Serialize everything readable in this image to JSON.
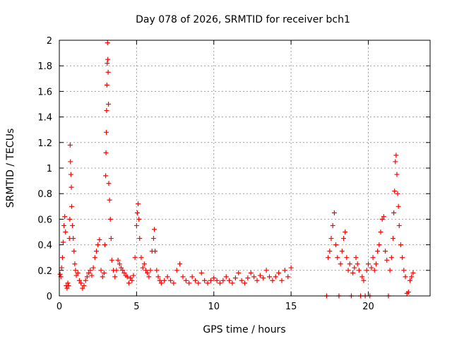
{
  "chart_data": {
    "type": "scatter",
    "title": "Day 078 of 2026, SRMTID for receiver bch1",
    "xlabel": "GPS time / hours",
    "ylabel": "SRMTID / TECUs",
    "xlim": [
      0,
      24
    ],
    "ylim": [
      0,
      2
    ],
    "xticks": [
      0,
      5,
      10,
      15,
      20
    ],
    "yticks": [
      0,
      0.2,
      0.4,
      0.6,
      0.8,
      1,
      1.2,
      1.4,
      1.6,
      1.8,
      2
    ],
    "xtick_labels": [
      "0",
      "5",
      "10",
      "15",
      "20"
    ],
    "ytick_labels": [
      "0",
      "0.2",
      "0.4",
      "0.6",
      "0.8",
      "1",
      "1.2",
      "1.4",
      "1.6",
      "1.8",
      "2"
    ],
    "grid": true,
    "marker": "plus",
    "color": "#ff0000",
    "series": [
      {
        "name": "bch1",
        "points": [
          [
            0.05,
            0.17
          ],
          [
            0.1,
            0.15
          ],
          [
            0.15,
            0.22
          ],
          [
            0.2,
            0.3
          ],
          [
            0.25,
            0.42
          ],
          [
            0.3,
            0.55
          ],
          [
            0.35,
            0.62
          ],
          [
            0.4,
            0.5
          ],
          [
            0.45,
            0.08
          ],
          [
            0.5,
            0.06
          ],
          [
            0.55,
            0.1
          ],
          [
            0.6,
            0.08
          ],
          [
            0.65,
            0.45
          ],
          [
            0.68,
            0.6
          ],
          [
            0.7,
            1.18
          ],
          [
            0.72,
            1.05
          ],
          [
            0.75,
            0.95
          ],
          [
            0.78,
            0.85
          ],
          [
            0.8,
            0.7
          ],
          [
            0.85,
            0.55
          ],
          [
            0.9,
            0.45
          ],
          [
            0.95,
            0.35
          ],
          [
            1.0,
            0.25
          ],
          [
            1.05,
            0.2
          ],
          [
            1.1,
            0.16
          ],
          [
            1.2,
            0.18
          ],
          [
            1.3,
            0.12
          ],
          [
            1.4,
            0.1
          ],
          [
            1.5,
            0.06
          ],
          [
            1.6,
            0.08
          ],
          [
            1.7,
            0.12
          ],
          [
            1.8,
            0.15
          ],
          [
            1.9,
            0.18
          ],
          [
            2.0,
            0.2
          ],
          [
            2.1,
            0.16
          ],
          [
            2.2,
            0.22
          ],
          [
            2.3,
            0.3
          ],
          [
            2.4,
            0.35
          ],
          [
            2.5,
            0.4
          ],
          [
            2.6,
            0.44
          ],
          [
            2.7,
            0.2
          ],
          [
            2.8,
            0.15
          ],
          [
            2.9,
            0.18
          ],
          [
            2.95,
            0.4
          ],
          [
            3.0,
            0.94
          ],
          [
            3.02,
            1.12
          ],
          [
            3.04,
            1.28
          ],
          [
            3.06,
            1.45
          ],
          [
            3.08,
            1.65
          ],
          [
            3.1,
            1.82
          ],
          [
            3.12,
            1.98
          ],
          [
            3.14,
            1.85
          ],
          [
            3.16,
            1.75
          ],
          [
            3.18,
            1.5
          ],
          [
            3.2,
            0.88
          ],
          [
            3.25,
            0.75
          ],
          [
            3.3,
            0.6
          ],
          [
            3.35,
            0.45
          ],
          [
            3.4,
            0.28
          ],
          [
            3.5,
            0.2
          ],
          [
            3.6,
            0.15
          ],
          [
            3.7,
            0.2
          ],
          [
            3.8,
            0.28
          ],
          [
            3.9,
            0.25
          ],
          [
            4.0,
            0.22
          ],
          [
            4.1,
            0.2
          ],
          [
            4.2,
            0.18
          ],
          [
            4.3,
            0.16
          ],
          [
            4.4,
            0.15
          ],
          [
            4.5,
            0.1
          ],
          [
            4.6,
            0.14
          ],
          [
            4.7,
            0.12
          ],
          [
            4.8,
            0.16
          ],
          [
            4.9,
            0.3
          ],
          [
            5.0,
            0.55
          ],
          [
            5.05,
            0.65
          ],
          [
            5.1,
            0.72
          ],
          [
            5.15,
            0.6
          ],
          [
            5.2,
            0.45
          ],
          [
            5.3,
            0.3
          ],
          [
            5.4,
            0.22
          ],
          [
            5.5,
            0.25
          ],
          [
            5.6,
            0.2
          ],
          [
            5.7,
            0.18
          ],
          [
            5.8,
            0.15
          ],
          [
            5.9,
            0.2
          ],
          [
            6.0,
            0.35
          ],
          [
            6.1,
            0.45
          ],
          [
            6.15,
            0.52
          ],
          [
            6.2,
            0.35
          ],
          [
            6.3,
            0.2
          ],
          [
            6.4,
            0.15
          ],
          [
            6.5,
            0.12
          ],
          [
            6.6,
            0.1
          ],
          [
            6.8,
            0.12
          ],
          [
            7.0,
            0.15
          ],
          [
            7.2,
            0.12
          ],
          [
            7.4,
            0.1
          ],
          [
            7.6,
            0.2
          ],
          [
            7.8,
            0.25
          ],
          [
            8.0,
            0.15
          ],
          [
            8.2,
            0.12
          ],
          [
            8.4,
            0.1
          ],
          [
            8.6,
            0.15
          ],
          [
            8.8,
            0.12
          ],
          [
            9.0,
            0.1
          ],
          [
            9.2,
            0.18
          ],
          [
            9.4,
            0.12
          ],
          [
            9.6,
            0.1
          ],
          [
            9.8,
            0.12
          ],
          [
            10.0,
            0.14
          ],
          [
            10.2,
            0.12
          ],
          [
            10.4,
            0.1
          ],
          [
            10.6,
            0.12
          ],
          [
            10.8,
            0.15
          ],
          [
            11.0,
            0.12
          ],
          [
            11.2,
            0.1
          ],
          [
            11.4,
            0.14
          ],
          [
            11.6,
            0.18
          ],
          [
            11.8,
            0.12
          ],
          [
            12.0,
            0.1
          ],
          [
            12.2,
            0.14
          ],
          [
            12.4,
            0.18
          ],
          [
            12.6,
            0.15
          ],
          [
            12.8,
            0.12
          ],
          [
            13.0,
            0.16
          ],
          [
            13.2,
            0.14
          ],
          [
            13.4,
            0.2
          ],
          [
            13.6,
            0.15
          ],
          [
            13.8,
            0.12
          ],
          [
            14.0,
            0.15
          ],
          [
            14.2,
            0.18
          ],
          [
            14.4,
            0.12
          ],
          [
            14.6,
            0.2
          ],
          [
            14.8,
            0.15
          ],
          [
            15.0,
            0.22
          ],
          [
            17.3,
            0.0
          ],
          [
            17.4,
            0.3
          ],
          [
            17.5,
            0.35
          ],
          [
            17.6,
            0.45
          ],
          [
            17.7,
            0.55
          ],
          [
            17.8,
            0.65
          ],
          [
            17.9,
            0.4
          ],
          [
            18.0,
            0.3
          ],
          [
            18.1,
            0.0
          ],
          [
            18.2,
            0.25
          ],
          [
            18.3,
            0.35
          ],
          [
            18.4,
            0.45
          ],
          [
            18.5,
            0.5
          ],
          [
            18.6,
            0.3
          ],
          [
            18.7,
            0.2
          ],
          [
            18.8,
            0.25
          ],
          [
            18.9,
            0.0
          ],
          [
            19.0,
            0.18
          ],
          [
            19.1,
            0.22
          ],
          [
            19.2,
            0.3
          ],
          [
            19.3,
            0.25
          ],
          [
            19.4,
            0.2
          ],
          [
            19.5,
            0.0
          ],
          [
            19.6,
            0.15
          ],
          [
            19.7,
            0.12
          ],
          [
            19.8,
            0.0
          ],
          [
            19.9,
            0.2
          ],
          [
            20.0,
            0.25
          ],
          [
            20.1,
            0.0
          ],
          [
            20.2,
            0.22
          ],
          [
            20.3,
            0.3
          ],
          [
            20.4,
            0.2
          ],
          [
            20.5,
            0.25
          ],
          [
            20.6,
            0.35
          ],
          [
            20.7,
            0.4
          ],
          [
            20.8,
            0.5
          ],
          [
            20.9,
            0.6
          ],
          [
            21.0,
            0.62
          ],
          [
            21.1,
            0.35
          ],
          [
            21.2,
            0.28
          ],
          [
            21.3,
            0.0
          ],
          [
            21.4,
            0.2
          ],
          [
            21.5,
            0.3
          ],
          [
            21.6,
            0.45
          ],
          [
            21.65,
            0.65
          ],
          [
            21.7,
            0.82
          ],
          [
            21.75,
            1.05
          ],
          [
            21.8,
            1.1
          ],
          [
            21.85,
            0.95
          ],
          [
            21.9,
            0.8
          ],
          [
            21.95,
            0.7
          ],
          [
            22.0,
            0.55
          ],
          [
            22.1,
            0.4
          ],
          [
            22.2,
            0.3
          ],
          [
            22.3,
            0.2
          ],
          [
            22.4,
            0.15
          ],
          [
            22.5,
            0.02
          ],
          [
            22.6,
            0.03
          ],
          [
            22.7,
            0.12
          ],
          [
            22.8,
            0.15
          ],
          [
            22.9,
            0.18
          ]
        ]
      }
    ]
  }
}
